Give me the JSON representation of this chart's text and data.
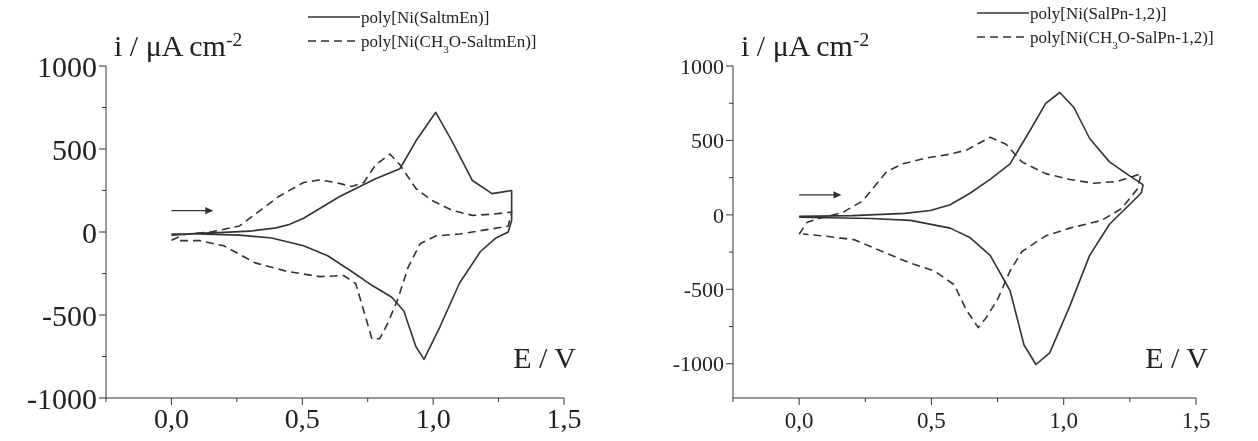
{
  "chart_data": [
    {
      "type": "line",
      "xlabel": "E / V",
      "ylabel": "i / μA cm$^{-2}$",
      "legend": "top right",
      "xlim": [
        -0.25,
        1.5
      ],
      "ylim": [
        -1000,
        1000
      ],
      "xticks": [
        {
          "value": -0.25,
          "label": null
        },
        {
          "value": 0,
          "label": "0,0"
        },
        {
          "value": 0.25,
          "label": null
        },
        {
          "value": 0.5,
          "label": "0,5"
        },
        {
          "value": 0.75,
          "label": null
        },
        {
          "value": 1,
          "label": "1,0"
        },
        {
          "value": 1.25,
          "label": null
        },
        {
          "value": 1.5,
          "label": "1,5"
        }
      ],
      "yticks": [
        -1000,
        {
          "value": -750,
          "label": null
        },
        -500,
        {
          "value": -250,
          "label": null
        },
        0,
        {
          "value": 250,
          "label": null
        },
        500,
        {
          "value": 750,
          "label": null
        },
        1000
      ],
      "series": [
        {
          "name": "poly[Ni(SaltmEn)]",
          "color": "#333333",
          "line_style": "solid",
          "x": [
            0,
            0.1,
            0.2,
            0.3,
            0.4,
            0.45,
            0.505,
            0.643,
            0.78,
            0.873,
            0.934,
            1.01,
            1.072,
            1.15,
            1.225,
            1.274,
            1.3,
            1.3,
            1.287,
            1.24,
            1.18,
            1.1,
            1.026,
            0.965,
            0.934,
            0.888,
            0.842,
            0.766,
            0.689,
            0.597,
            0.505,
            0.383,
            0.26,
            0.107,
            0
          ],
          "values": [
            -20,
            -8,
            -2,
            5,
            25,
            45,
            83,
            214,
            321,
            381,
            548,
            721,
            548,
            310,
            231,
            243,
            250,
            71,
            0,
            -36,
            -119,
            -310,
            -571,
            -767,
            -690,
            -476,
            -393,
            -321,
            -238,
            -143,
            -83,
            -36,
            -19,
            -12,
            -12
          ]
        },
        {
          "name": "poly[Ni(CH$_{3}$O-SaltmEn)]",
          "color": "#333333",
          "line_style": "dashed",
          "x": [
            0,
            0.05,
            0.15,
            0.26,
            0.32,
            0.41,
            0.505,
            0.567,
            0.628,
            0.689,
            0.735,
            0.78,
            0.835,
            0.873,
            0.934,
            0.995,
            1.072,
            1.15,
            1.225,
            1.294,
            1.3,
            1.287,
            1.225,
            1.1,
            1.01,
            0.95,
            0.904,
            0.865,
            0.827,
            0.796,
            0.766,
            0.735,
            0.704,
            0.658,
            0.567,
            0.444,
            0.32,
            0.2,
            0.107,
            0.015
          ],
          "values": [
            -50,
            -15,
            0,
            36,
            107,
            214,
            298,
            314,
            298,
            274,
            298,
            405,
            469,
            405,
            262,
            190,
            131,
            100,
            107,
            119,
            120,
            36,
            19,
            -12,
            -24,
            -71,
            -214,
            -405,
            -548,
            -643,
            -643,
            -476,
            -310,
            -262,
            -269,
            -238,
            -186,
            -83,
            -52,
            -52
          ]
        }
      ]
    },
    {
      "type": "line",
      "xlabel": "E / V",
      "ylabel": "i / μA cm$^{-2}$",
      "legend": "top right",
      "xlim": [
        -0.25,
        1.5
      ],
      "ylim": [
        -1230,
        1000
      ],
      "xticks": [
        {
          "value": -0.25,
          "label": null
        },
        {
          "value": 0,
          "label": "0,0"
        },
        {
          "value": 0.25,
          "label": null
        },
        {
          "value": 0.5,
          "label": "0,5"
        },
        {
          "value": 0.75,
          "label": null
        },
        {
          "value": 1,
          "label": "1,0"
        },
        {
          "value": 1.25,
          "label": null
        },
        {
          "value": 1.5,
          "label": "1,5"
        }
      ],
      "yticks": [
        -1000,
        {
          "value": -750,
          "label": null
        },
        -500,
        {
          "value": -250,
          "label": null
        },
        0,
        {
          "value": 250,
          "label": null
        },
        500,
        {
          "value": 750,
          "label": null
        },
        1000
      ],
      "series": [
        {
          "name": "poly[Ni(SalPn-1,2)]",
          "color": "#333333",
          "line_style": "solid",
          "x": [
            0,
            0.2,
            0.4,
            0.496,
            0.571,
            0.647,
            0.722,
            0.797,
            0.872,
            0.932,
            0.985,
            1.038,
            1.098,
            1.173,
            1.248,
            1.293,
            1.3,
            1.293,
            1.248,
            1.173,
            1.098,
            1.023,
            0.947,
            0.895,
            0.85,
            0.797,
            0.722,
            0.647,
            0.571,
            0.421,
            0.271,
            0
          ],
          "values": [
            -10,
            -5,
            10,
            29,
            68,
            147,
            238,
            343,
            565,
            749,
            822,
            723,
            513,
            356,
            264,
            212,
            200,
            147,
            68,
            -63,
            -272,
            -613,
            -927,
            -1005,
            -874,
            -508,
            -272,
            -154,
            -89,
            -37,
            -24,
            -16
          ]
        },
        {
          "name": "poly[Ni(CH$_{3}$O-SalPn-1,2)]",
          "color": "#333333",
          "line_style": "dashed",
          "x": [
            0,
            0.03,
            0.075,
            0.165,
            0.24,
            0.331,
            0.391,
            0.481,
            0.571,
            0.632,
            0.722,
            0.782,
            0.842,
            0.932,
            1.023,
            1.113,
            1.203,
            1.293,
            1.278,
            1.218,
            1.143,
            1.023,
            0.932,
            0.842,
            0.797,
            0.752,
            0.707,
            0.677,
            0.632,
            0.586,
            0.511,
            0.421,
            0.331,
            0.211,
            0.09,
            0.015
          ],
          "values": [
            -130,
            -50,
            -24,
            16,
            94,
            291,
            343,
            382,
            408,
            435,
            521,
            474,
            356,
            277,
            238,
            212,
            225,
            277,
            173,
            42,
            -37,
            -89,
            -141,
            -246,
            -377,
            -560,
            -691,
            -757,
            -639,
            -469,
            -377,
            -325,
            -259,
            -168,
            -141,
            -128
          ]
        }
      ]
    }
  ]
}
